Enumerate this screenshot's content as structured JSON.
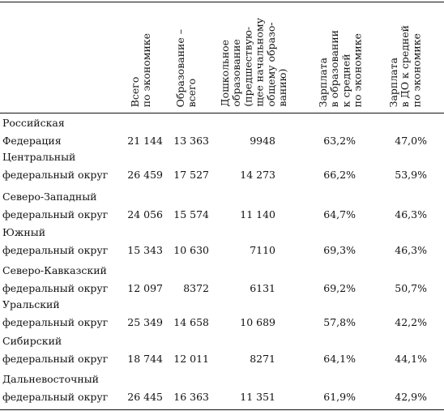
{
  "headers": {
    "total": "Всего\nпо экономике",
    "education": "Образование –\nвсего",
    "preschool": "Дошкольное\nобразование\n(предшествую-\nщее начальному\nобщему образо-\nванию)",
    "edu_ratio": "Зарплата\nв образовании\nк средней\nпо экономике",
    "pre_ratio": "Зарплата\nв ДО к средней\nпо экономике"
  },
  "rows": [
    {
      "l1": "Российская",
      "l2": "Федерация",
      "total": "21 144",
      "edu": "13 363",
      "pre": "9948",
      "r1": "63,2%",
      "r2": "47,0%"
    },
    {
      "l1": "Центральный",
      "l2": "федеральный округ",
      "total": "26 459",
      "edu": "17 527",
      "pre": "14 273",
      "r1": "66,2%",
      "r2": "53,9%"
    },
    {
      "l1": "Северо-Западный",
      "l2": "федеральный округ",
      "total": "24 056",
      "edu": "15 574",
      "pre": "11 140",
      "r1": "64,7%",
      "r2": "46,3%"
    },
    {
      "l1": "Южный",
      "l2": "федеральный округ",
      "total": "15 343",
      "edu": "10 630",
      "pre": "7110",
      "r1": "69,3%",
      "r2": "46,3%"
    },
    {
      "l1": "Северо-Кавказский",
      "l2": "федеральный округ",
      "total": "12 097",
      "edu": "8372",
      "pre": "6131",
      "r1": "69,2%",
      "r2": "50,7%"
    },
    {
      "l1": "Уральский",
      "l2": "федеральный округ",
      "total": "25 349",
      "edu": "14 658",
      "pre": "10 689",
      "r1": "57,8%",
      "r2": "42,2%"
    },
    {
      "l1": "Сибирский",
      "l2": "федеральный округ",
      "total": "18 744",
      "edu": "12 011",
      "pre": "8271",
      "r1": "64,1%",
      "r2": "44,1%"
    },
    {
      "l1": "Дальневосточный",
      "l2": "федеральный округ",
      "total": "26 445",
      "edu": "16 363",
      "pre": "11 351",
      "r1": "61,9%",
      "r2": "42,9%"
    }
  ]
}
